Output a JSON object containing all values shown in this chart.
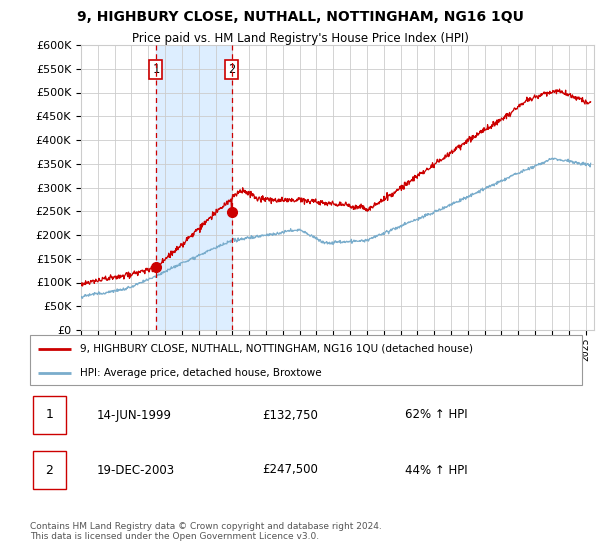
{
  "title": "9, HIGHBURY CLOSE, NUTHALL, NOTTINGHAM, NG16 1QU",
  "subtitle": "Price paid vs. HM Land Registry's House Price Index (HPI)",
  "ylim": [
    0,
    600000
  ],
  "yticks": [
    0,
    50000,
    100000,
    150000,
    200000,
    250000,
    300000,
    350000,
    400000,
    450000,
    500000,
    550000,
    600000
  ],
  "xlim_start": 1995.0,
  "xlim_end": 2025.5,
  "red_line_color": "#cc0000",
  "blue_line_color": "#7aadcc",
  "shaded_region_color": "#ddeeff",
  "dashed_line_color": "#cc0000",
  "grid_color": "#cccccc",
  "background_color": "#ffffff",
  "legend_label_red": "9, HIGHBURY CLOSE, NUTHALL, NOTTINGHAM, NG16 1QU (detached house)",
  "legend_label_blue": "HPI: Average price, detached house, Broxtowe",
  "transaction1_date": "14-JUN-1999",
  "transaction1_price": 132750,
  "transaction1_pct": "62% ↑ HPI",
  "transaction2_date": "19-DEC-2003",
  "transaction2_price": 247500,
  "transaction2_pct": "44% ↑ HPI",
  "footnote": "Contains HM Land Registry data © Crown copyright and database right 2024.\nThis data is licensed under the Open Government Licence v3.0.",
  "transaction1_year": 1999.45,
  "transaction2_year": 2003.96
}
